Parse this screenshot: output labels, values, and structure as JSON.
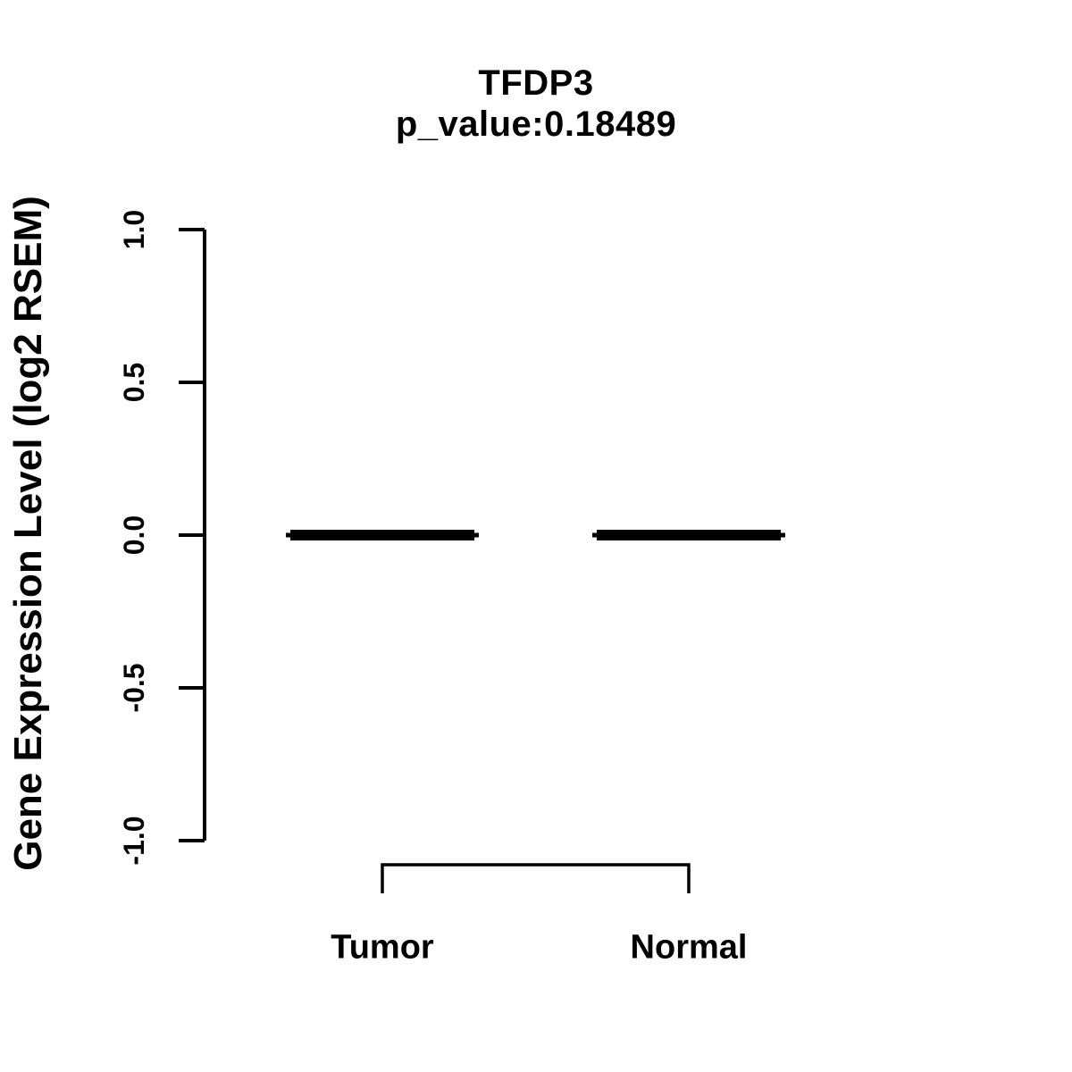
{
  "page": {
    "background": "#ffffff",
    "ink": "#000000"
  },
  "chart_data": {
    "type": "boxplot",
    "title": "TFDP3",
    "subtitle": "p_value:0.18489",
    "ylabel": "Gene Expression Level (log2 RSEM)",
    "xlabel": "",
    "categories": [
      "Tumor",
      "Normal"
    ],
    "groups": [
      {
        "label": "Tumor",
        "median": 0.0,
        "q1": 0.0,
        "q3": 0.0,
        "whisker_low": 0.0,
        "whisker_high": 0.0
      },
      {
        "label": "Normal",
        "median": 0.0,
        "q1": 0.0,
        "q3": 0.0,
        "whisker_low": 0.0,
        "whisker_high": 0.0
      }
    ],
    "series": [
      {
        "name": "median",
        "values": [
          0.0,
          0.0
        ]
      }
    ],
    "ylim": [
      -1.0,
      1.0
    ],
    "yticks": [
      {
        "value": 1.0,
        "label": "1.0"
      },
      {
        "value": 0.5,
        "label": "0.5"
      },
      {
        "value": 0.0,
        "label": "0.0"
      },
      {
        "value": -0.5,
        "label": "-0.5"
      },
      {
        "value": -1.0,
        "label": "-1.0"
      }
    ],
    "grid": false,
    "legend": "none",
    "comparison_bracket": {
      "from": "Tumor",
      "to": "Normal"
    }
  }
}
